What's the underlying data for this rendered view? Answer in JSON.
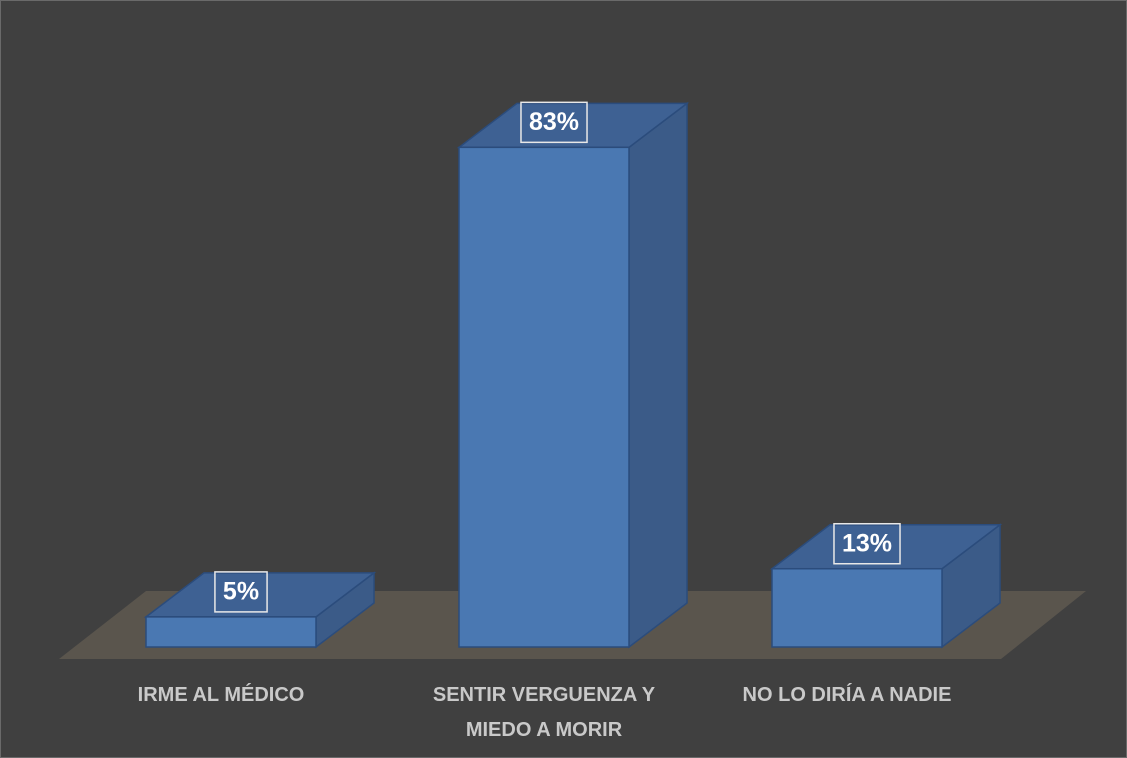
{
  "chart_data": {
    "type": "bar3d",
    "categories": [
      "IRME AL MÉDICO",
      "SENTIR VERGUENZA Y MIEDO A MORIR",
      "NO LO DIRÍA A NADIE"
    ],
    "values": [
      5,
      83,
      13
    ],
    "value_labels": [
      "5%",
      "83%",
      "13%"
    ],
    "color": "#4a78b2"
  }
}
